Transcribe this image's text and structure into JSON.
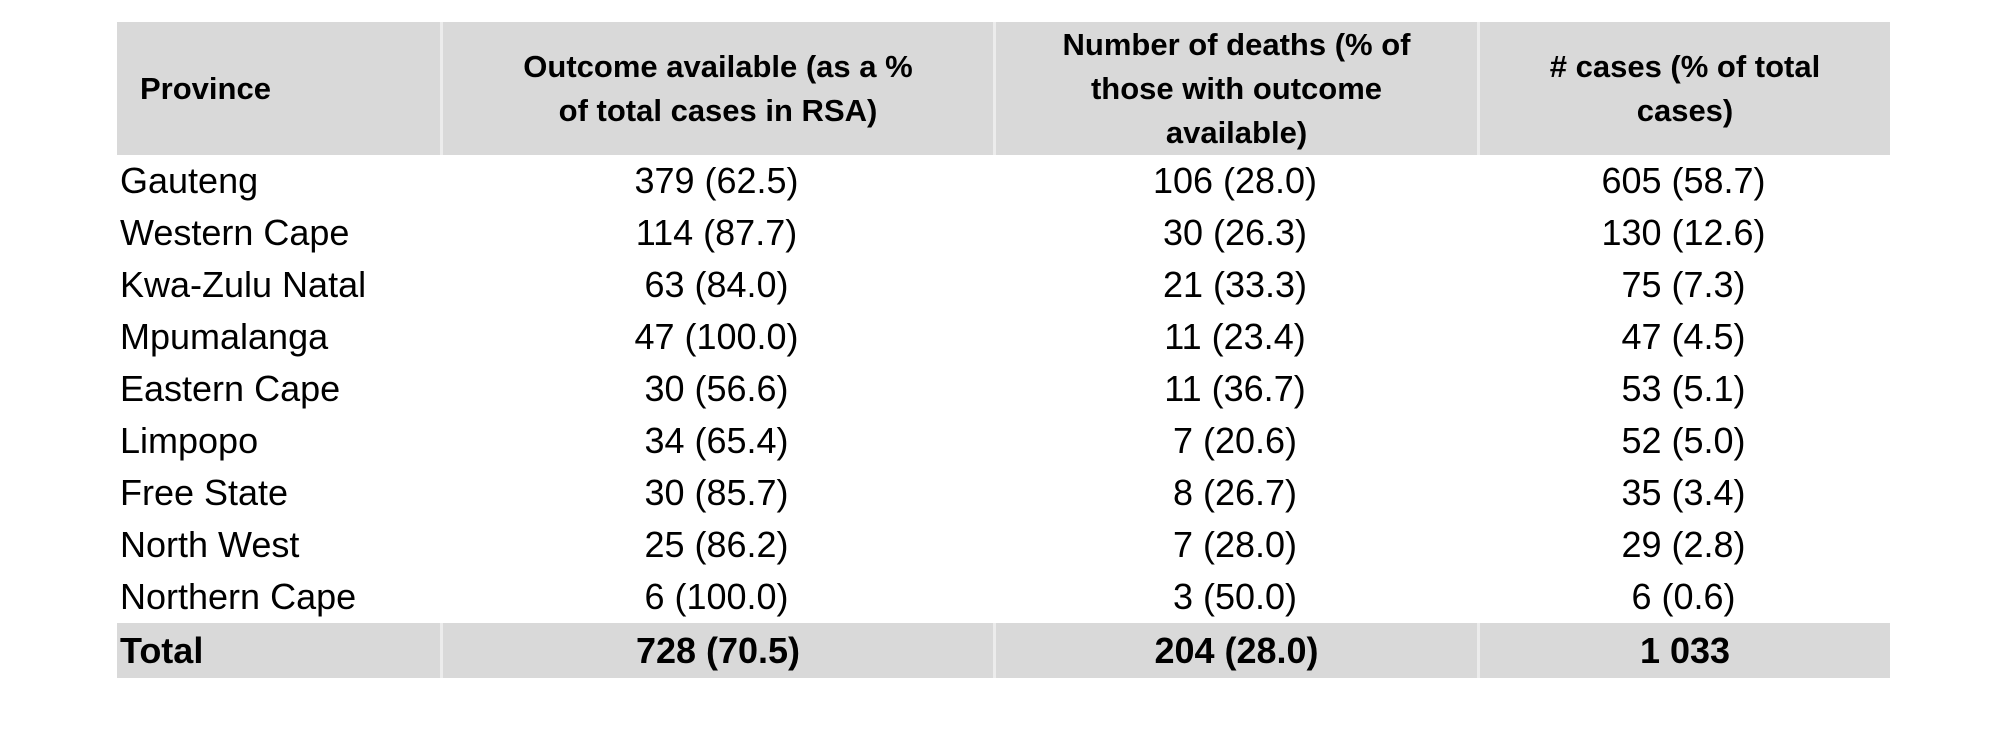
{
  "chart_data": {
    "type": "table",
    "columns": [
      "Province",
      "Outcome available (as a %\nof total cases in RSA)",
      "Number of deaths (% of\nthose with outcome\navailable)",
      "# cases (% of total\ncases)"
    ],
    "rows": [
      [
        "Gauteng",
        "379 (62.5)",
        "106 (28.0)",
        "605 (58.7)"
      ],
      [
        "Western Cape",
        "114 (87.7)",
        "30 (26.3)",
        "130 (12.6)"
      ],
      [
        "Kwa-Zulu Natal",
        "63 (84.0)",
        "21 (33.3)",
        "75 (7.3)"
      ],
      [
        "Mpumalanga",
        "47 (100.0)",
        "11 (23.4)",
        "47 (4.5)"
      ],
      [
        "Eastern Cape",
        "30 (56.6)",
        "11 (36.7)",
        "53 (5.1)"
      ],
      [
        "Limpopo",
        "34 (65.4)",
        "7 (20.6)",
        "52 (5.0)"
      ],
      [
        "Free State",
        "30 (85.7)",
        "8 (26.7)",
        "35 (3.4)"
      ],
      [
        "North West",
        "25 (86.2)",
        "7 (28.0)",
        "29 (2.8)"
      ],
      [
        "Northern Cape",
        "6 (100.0)",
        "3 (50.0)",
        "6 (0.6)"
      ]
    ],
    "total_row": [
      "Total",
      "728 (70.5)",
      "204 (28.0)",
      "1 033"
    ],
    "layout": {
      "column_alignments": [
        "left",
        "center",
        "center",
        "center"
      ],
      "header_bg": "#d9d9d9",
      "total_row_bg": "#d9d9d9",
      "body_bg": "#ffffff",
      "separator_color": "#ececec",
      "text_color": "#000000",
      "grid": "none (shading only on header and total rows)"
    }
  }
}
